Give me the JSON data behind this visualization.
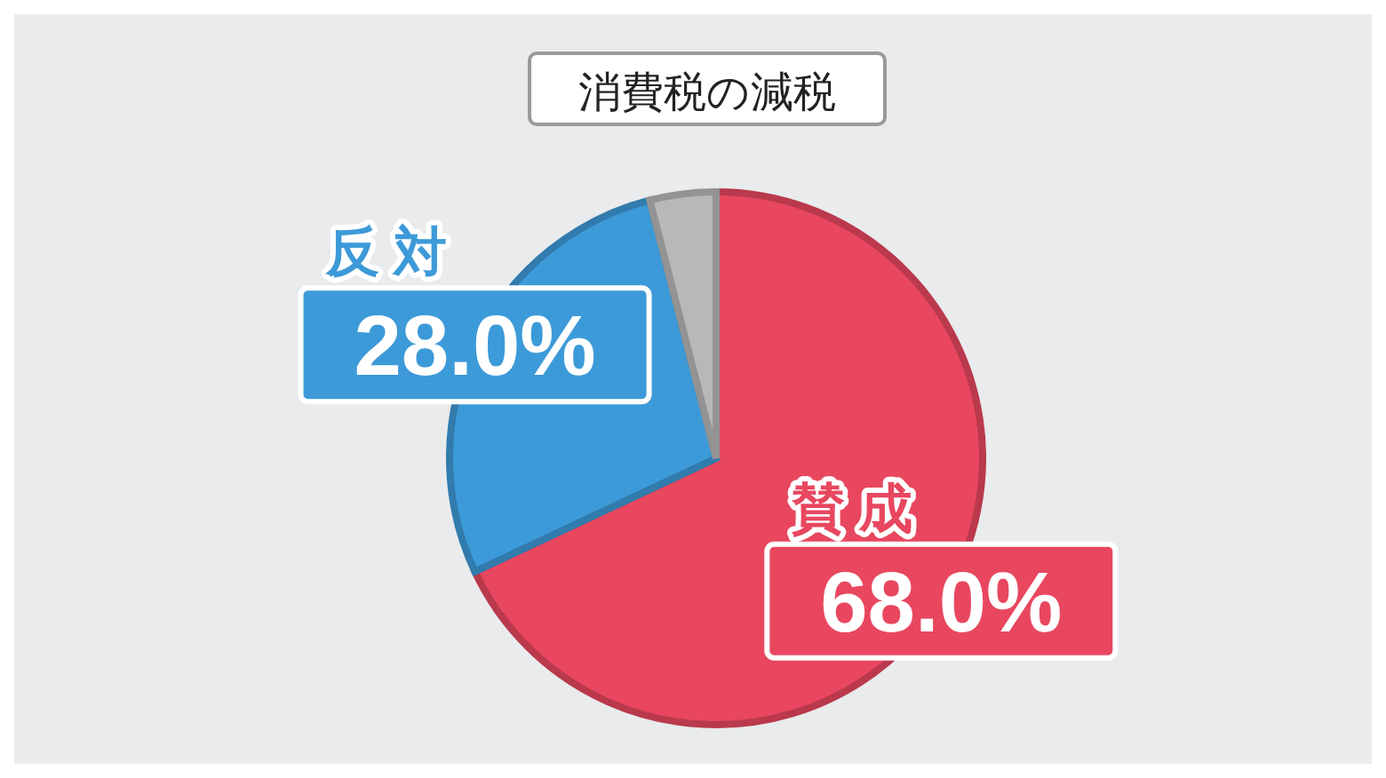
{
  "chart_data": {
    "type": "pie",
    "title": "消費税の減税",
    "categories": [
      "賛成",
      "反対",
      null
    ],
    "values": [
      68.0,
      28.0,
      4.0
    ],
    "colors": [
      "#e8475f",
      "#3d9ad8",
      "#b8b8b8"
    ],
    "value_labels": [
      "68.0%",
      "28.0%",
      null
    ]
  }
}
